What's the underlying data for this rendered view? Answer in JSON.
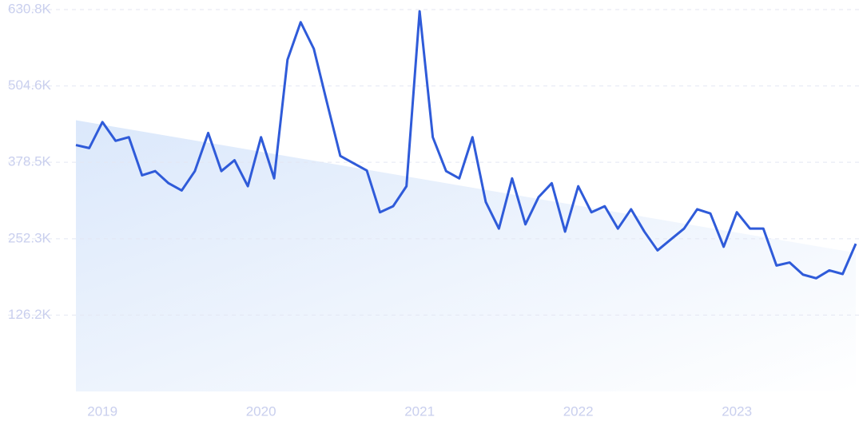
{
  "chart_data": {
    "type": "line",
    "x": [
      2018.833,
      2018.917,
      2019.0,
      2019.083,
      2019.167,
      2019.25,
      2019.333,
      2019.417,
      2019.5,
      2019.583,
      2019.667,
      2019.75,
      2019.833,
      2019.917,
      2020.0,
      2020.083,
      2020.167,
      2020.25,
      2020.333,
      2020.417,
      2020.5,
      2020.583,
      2020.667,
      2020.75,
      2020.833,
      2020.917,
      2021.0,
      2021.083,
      2021.167,
      2021.25,
      2021.333,
      2021.417,
      2021.5,
      2021.583,
      2021.667,
      2021.75,
      2021.833,
      2021.917,
      2022.0,
      2022.083,
      2022.167,
      2022.25,
      2022.333,
      2022.417,
      2022.5,
      2022.583,
      2022.667,
      2022.75,
      2022.833,
      2022.917,
      2023.0,
      2023.083,
      2023.167,
      2023.25,
      2023.333,
      2023.417,
      2023.5,
      2023.583,
      2023.667,
      2023.75
    ],
    "series": [
      {
        "color": "#2f5bd9",
        "values": [
          407000,
          402000,
          445000,
          414000,
          420000,
          357000,
          364000,
          344000,
          332000,
          364000,
          427000,
          364000,
          382000,
          339000,
          420000,
          352000,
          548000,
          610000,
          566000,
          476000,
          389000,
          377000,
          365000,
          296000,
          306000,
          339000,
          628000,
          420000,
          364000,
          352000,
          420000,
          313000,
          269000,
          352000,
          276000,
          321000,
          344000,
          264000,
          339000,
          296000,
          306000,
          269000,
          301000,
          264000,
          233000,
          251000,
          269000,
          301000,
          294000,
          239000,
          296000,
          269000,
          269000,
          208000,
          213000,
          193000,
          187000,
          200000,
          194000,
          244000
        ]
      }
    ],
    "trend": [
      448000,
      229000
    ],
    "xlim": [
      2018.833,
      2023.75
    ],
    "xticks": [
      2019,
      2020,
      2021,
      2022,
      2023
    ],
    "ylim": [
      0,
      630800
    ],
    "yticks": [
      {
        "value": 126200,
        "label": "126.2K"
      },
      {
        "value": 252300,
        "label": "252.3K"
      },
      {
        "value": 378500,
        "label": "378.5K"
      },
      {
        "value": 504600,
        "label": "504.6K"
      },
      {
        "value": 630800,
        "label": "630.8K"
      }
    ],
    "grid": true
  }
}
